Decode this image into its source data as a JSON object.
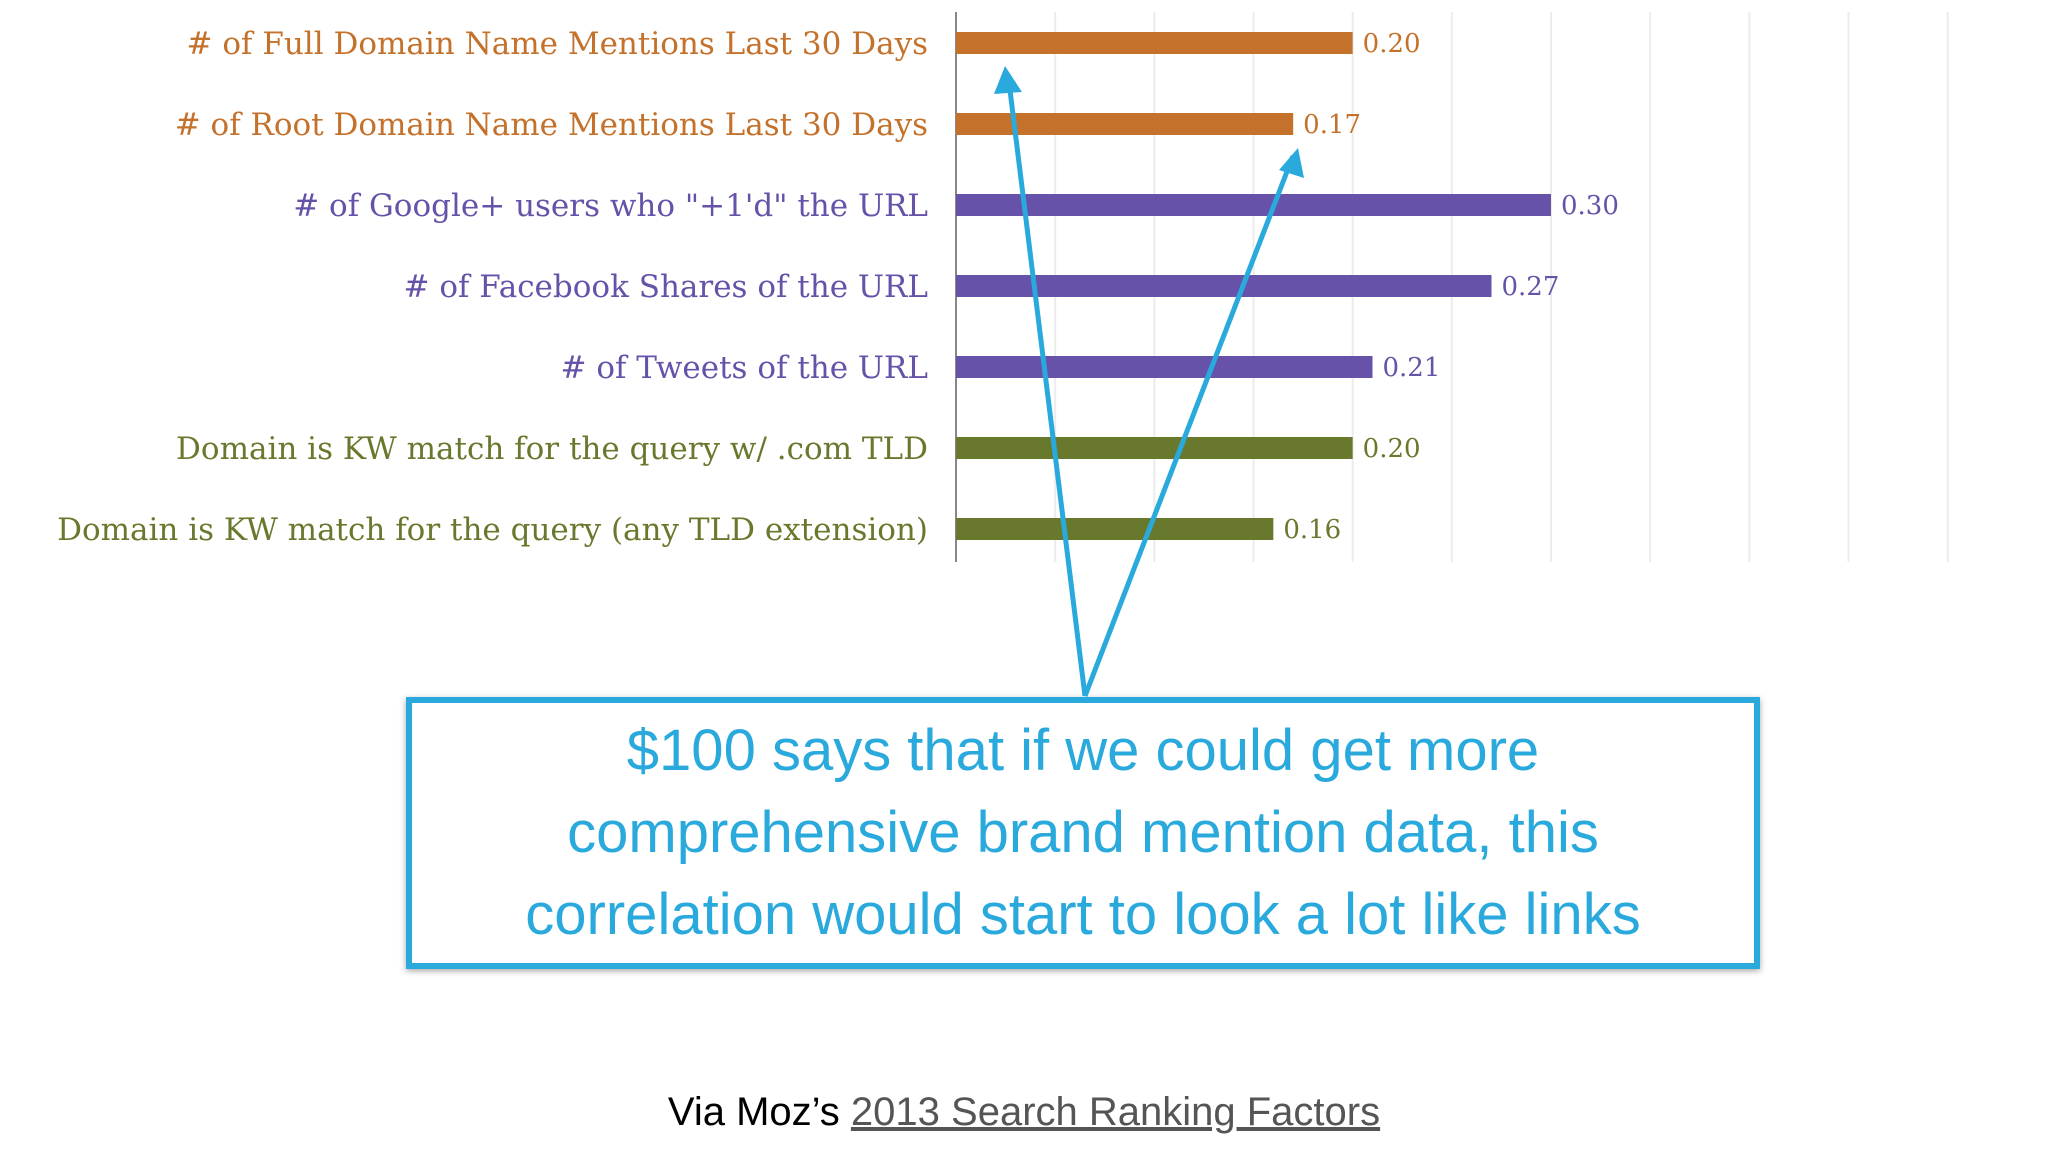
{
  "chart_data": {
    "type": "bar",
    "orientation": "horizontal",
    "categories": [
      "# of Full Domain Name Mentions Last 30 Days",
      "# of Root Domain Name Mentions Last 30 Days",
      "# of Google+ users who \"+1'd\" the URL",
      "# of Facebook Shares of the URL",
      "# of Tweets of the URL",
      "Domain is KW match for the query w/ .com TLD",
      "Domain is KW match for the query (any TLD extension)"
    ],
    "values": [
      0.2,
      0.17,
      0.3,
      0.27,
      0.21,
      0.2,
      0.16
    ],
    "value_labels": [
      "0.20",
      "0.17",
      "0.30",
      "0.27",
      "0.21",
      "0.20",
      "0.16"
    ],
    "colors": [
      "#c4712b",
      "#c4712b",
      "#6652a8",
      "#6652a8",
      "#6652a8",
      "#68792e",
      "#68792e"
    ],
    "xlim": [
      0,
      0.45
    ],
    "grid": true
  },
  "callout": {
    "text": "$100 says that if we could get more comprehensive brand mention data, this correlation would start to look a lot like links",
    "color": "#29a9dc"
  },
  "source": {
    "prefix": "Via Moz’s ",
    "link_text": "2013 Search Ranking Factors"
  }
}
